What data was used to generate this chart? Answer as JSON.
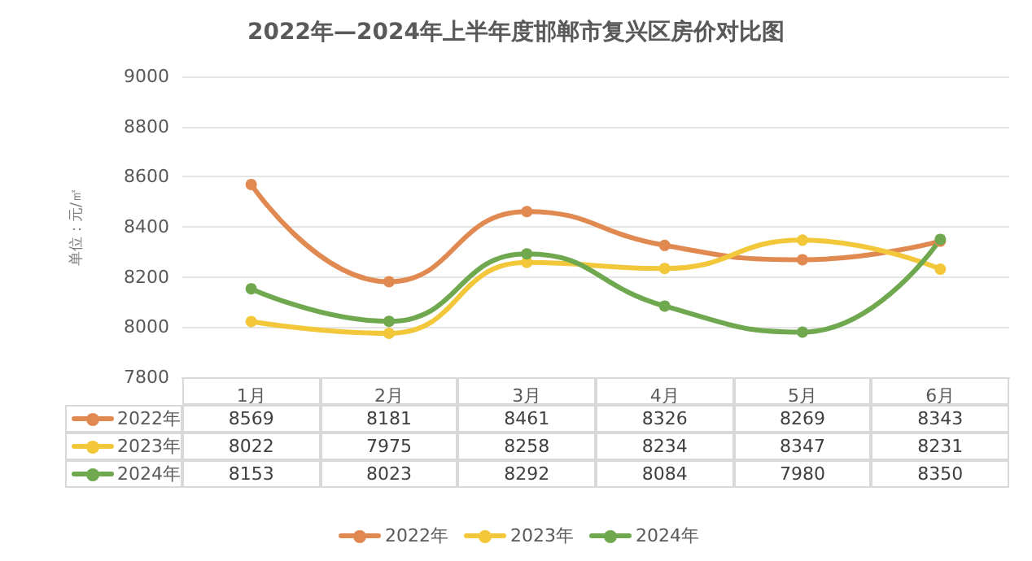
{
  "chart_data": {
    "type": "line",
    "title": "2022年—2024年上半年度邯郸市复兴区房价对比图",
    "ylabel": "单位：元/㎡",
    "categories": [
      "1月",
      "2月",
      "3月",
      "4月",
      "5月",
      "6月"
    ],
    "series": [
      {
        "name": "2022年",
        "color": "#e08a52",
        "values": [
          8569,
          8181,
          8461,
          8326,
          8269,
          8343
        ]
      },
      {
        "name": "2023年",
        "color": "#f2c73a",
        "values": [
          8022,
          7975,
          8258,
          8234,
          8347,
          8231
        ]
      },
      {
        "name": "2024年",
        "color": "#70a84f",
        "values": [
          8153,
          8023,
          8292,
          8084,
          7980,
          8350
        ]
      }
    ],
    "ylim": [
      7800,
      9000
    ],
    "yticks": [
      7800,
      8000,
      8200,
      8400,
      8600,
      8800,
      9000
    ],
    "grid": "y",
    "legend": "bottom",
    "marker": "circle",
    "line_style": "solid",
    "data_labels": true
  }
}
